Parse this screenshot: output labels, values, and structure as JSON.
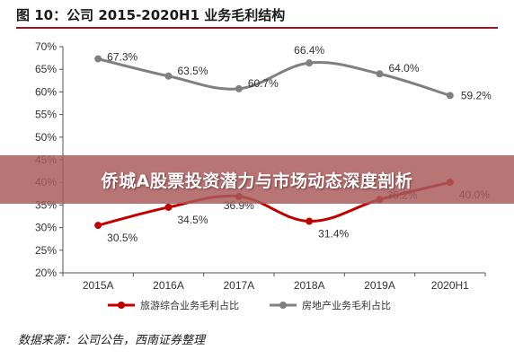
{
  "figure": {
    "title": "图 10：公司 2015-2020H1 业务毛利结构",
    "source": "数据来源：公司公告，西南证券整理"
  },
  "banner": {
    "text": "侨城A股票投资潜力与市场动态深度剖析"
  },
  "colors": {
    "tourism_line": "#c00000",
    "realestate_line": "#808080",
    "title_rule": "#8b1a2b"
  },
  "chart_data": {
    "type": "line",
    "title": "图 10：公司 2015-2020H1 业务毛利结构",
    "xlabel": "",
    "ylabel": "",
    "categories": [
      "2015A",
      "2016A",
      "2017A",
      "2018A",
      "2019A",
      "2020H1"
    ],
    "y_ticks": [
      "20%",
      "25%",
      "30%",
      "35%",
      "40%",
      "45%",
      "50%",
      "55%",
      "60%",
      "65%",
      "70%"
    ],
    "ylim": [
      20,
      70
    ],
    "grid": false,
    "legend_position": "bottom",
    "series": [
      {
        "name": "旅游综合业务毛利占比",
        "color": "#c00000",
        "values": [
          30.5,
          34.5,
          36.9,
          31.4,
          36.2,
          40.0
        ],
        "labels": [
          "30.5%",
          "34.5%",
          "36.9%",
          "31.4%",
          "36.2%",
          "40.0%"
        ]
      },
      {
        "name": "房地产业务毛利占比",
        "color": "#808080",
        "values": [
          67.3,
          63.5,
          60.7,
          66.4,
          64.0,
          59.2
        ],
        "labels": [
          "67.3%",
          "63.5%",
          "60.7%",
          "66.4%",
          "64.0%",
          "59.2%"
        ]
      }
    ]
  }
}
